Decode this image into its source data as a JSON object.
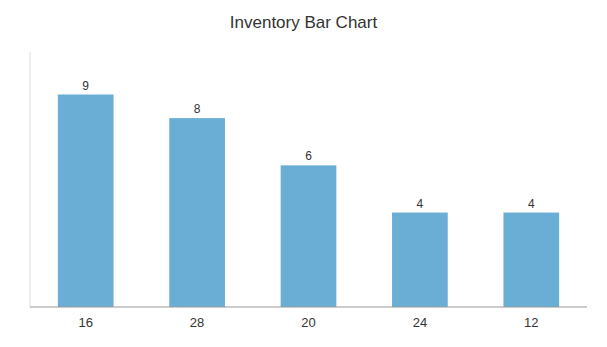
{
  "chart_data": {
    "type": "bar",
    "title": "Inventory Bar Chart",
    "categories": [
      "16",
      "28",
      "20",
      "24",
      "12"
    ],
    "values": [
      9,
      8,
      6,
      4,
      4
    ],
    "color": "#6aaed6",
    "ylim": [
      0,
      10.8
    ],
    "grid": false,
    "data_labels": true,
    "tick_labels": "x"
  }
}
